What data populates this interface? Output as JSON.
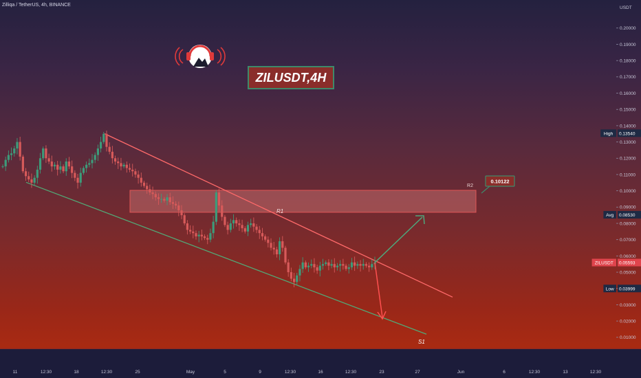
{
  "header": {
    "symbol": "Zilliqa / TetherUS, 4h, BINANCE"
  },
  "watermark": {
    "title": "ZILUSDT,4H",
    "logo_icon": "headphones-mascot-icon"
  },
  "price_axis": {
    "unit": "USDT"
  },
  "chart_data": {
    "type": "candlestick",
    "symbol": "ZILUSDT",
    "interval": "4h",
    "exchange": "BINANCE",
    "y_ticks": [
      0.2,
      0.19,
      0.18,
      0.17,
      0.16,
      0.15,
      0.14,
      0.13,
      0.12,
      0.11,
      0.1,
      0.09,
      0.08,
      0.07,
      0.06,
      0.05,
      0.04,
      0.03,
      0.02,
      0.01
    ],
    "ylim": [
      0.004,
      0.213
    ],
    "x_ticks": [
      "11",
      "12:30",
      "18",
      "12:30",
      "25",
      "May",
      "5",
      "9",
      "12:30",
      "16",
      "12:30",
      "23",
      "27",
      "Jun",
      "6",
      "12:30",
      "13",
      "12:30"
    ],
    "price_labels": [
      {
        "name": "High",
        "value": "0.13540",
        "color": "#1e2a44"
      },
      {
        "name": "Avg",
        "value": "0.08530",
        "color": "#1e2a44"
      },
      {
        "name": "ZILUSDT",
        "value": "0.05593",
        "color": "#e0444c"
      },
      {
        "name": "Low",
        "value": "0.03999",
        "color": "#1e2a44"
      }
    ],
    "zone": {
      "label": "R1",
      "top": 0.1003,
      "bottom": 0.0868
    },
    "zone_label": "R2",
    "target_label": "0.10122",
    "support_label": "S1",
    "upper_trendline": [
      0.1351,
      0.0347
    ],
    "lower_trendline": [
      0.1052,
      0.0119
    ],
    "close_series": [
      0.115,
      0.119,
      0.122,
      0.123,
      0.126,
      0.13,
      0.121,
      0.112,
      0.109,
      0.107,
      0.105,
      0.108,
      0.113,
      0.12,
      0.126,
      0.12,
      0.118,
      0.115,
      0.116,
      0.113,
      0.115,
      0.112,
      0.118,
      0.115,
      0.111,
      0.108,
      0.105,
      0.111,
      0.114,
      0.116,
      0.117,
      0.119,
      0.122,
      0.126,
      0.13,
      0.135,
      0.127,
      0.124,
      0.12,
      0.118,
      0.117,
      0.115,
      0.116,
      0.114,
      0.113,
      0.112,
      0.11,
      0.108,
      0.105,
      0.103,
      0.101,
      0.099,
      0.098,
      0.096,
      0.095,
      0.095,
      0.094,
      0.096,
      0.093,
      0.092,
      0.091,
      0.088,
      0.085,
      0.08,
      0.076,
      0.075,
      0.074,
      0.072,
      0.073,
      0.072,
      0.071,
      0.07,
      0.074,
      0.081,
      0.099,
      0.091,
      0.084,
      0.079,
      0.076,
      0.08,
      0.082,
      0.08,
      0.079,
      0.077,
      0.075,
      0.079,
      0.08,
      0.078,
      0.076,
      0.074,
      0.072,
      0.07,
      0.068,
      0.065,
      0.064,
      0.061,
      0.069,
      0.065,
      0.056,
      0.05,
      0.046,
      0.044,
      0.048,
      0.052,
      0.056,
      0.053,
      0.054,
      0.055,
      0.053,
      0.051,
      0.054,
      0.055,
      0.056,
      0.054,
      0.055,
      0.053,
      0.054,
      0.055,
      0.054,
      0.052,
      0.053,
      0.056,
      0.054,
      0.055,
      0.054,
      0.055,
      0.054,
      0.053,
      0.055,
      0.0559
    ]
  }
}
